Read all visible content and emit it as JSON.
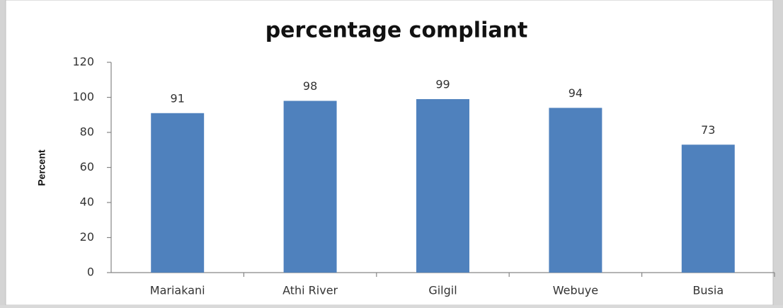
{
  "chart_data": {
    "type": "bar",
    "title": "percentage compliant",
    "y_label": "Percent",
    "categories": [
      "Mariakani",
      "Athi River",
      "Gilgil",
      "Webuye",
      "Busia"
    ],
    "values": [
      91,
      98,
      99,
      94,
      73
    ],
    "color": "#4f81bd",
    "ylim": [
      0,
      120
    ],
    "yticks": [
      0,
      20,
      40,
      60,
      80,
      100,
      120
    ],
    "grid": false
  }
}
